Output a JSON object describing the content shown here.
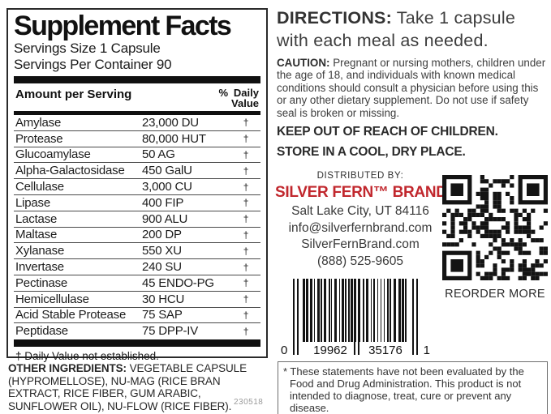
{
  "facts": {
    "title": "Supplement Facts",
    "serving_size": "Servings Size 1 Capsule",
    "servings_per_container": "Servings Per Container 90",
    "amount_header": "Amount per Serving",
    "daily_value_header": {
      "pct": "%",
      "line1": "Daily",
      "line2": "Value"
    },
    "rows": [
      {
        "name": "Amylase",
        "amount": "23,000 DU",
        "dv": "†"
      },
      {
        "name": "Protease",
        "amount": "80,000 HUT",
        "dv": "†"
      },
      {
        "name": "Glucoamylase",
        "amount": "50 AG",
        "dv": "†"
      },
      {
        "name": "Alpha-Galactosidase",
        "amount": "450 GalU",
        "dv": "†"
      },
      {
        "name": "Cellulase",
        "amount": "3,000 CU",
        "dv": "†"
      },
      {
        "name": "Lipase",
        "amount": "400 FIP",
        "dv": "†"
      },
      {
        "name": "Lactase",
        "amount": "900 ALU",
        "dv": "†"
      },
      {
        "name": "Maltase",
        "amount": "200 DP",
        "dv": "†"
      },
      {
        "name": "Xylanase",
        "amount": "550 XU",
        "dv": "†"
      },
      {
        "name": "Invertase",
        "amount": "240 SU",
        "dv": "†"
      },
      {
        "name": "Pectinase",
        "amount": "45 ENDO-PG",
        "dv": "†"
      },
      {
        "name": "Hemicellulase",
        "amount": "30 HCU",
        "dv": "†"
      },
      {
        "name": "Acid Stable Protease",
        "amount": "75 SAP",
        "dv": "†"
      },
      {
        "name": "Peptidase",
        "amount": "75 DPP-IV",
        "dv": "†"
      }
    ],
    "footnote": "† Daily Value not established."
  },
  "other_ingredients": {
    "label": "OTHER INGREDIENTS:",
    "text": "VEGETABLE CAPSULE (HYPROMELLOSE), NU-MAG (RICE BRAN EXTRACT, RICE FIBER, GUM ARABIC, SUNFLOWER OIL), NU-FLOW (RICE FIBER)."
  },
  "lot_number": "230518",
  "directions": {
    "label": "DIRECTIONS:",
    "text": "Take 1 capsule with each meal as needed."
  },
  "caution": {
    "label": "CAUTION:",
    "text": "Pregnant or nursing mothers, children under the age of 18, and individuals with known medical conditions should consult a physician before using this or any other dietary supplement. Do not use if safety seal is broken or missing."
  },
  "warnings": {
    "keep_out": "KEEP OUT OF REACH OF CHILDREN.",
    "store": "STORE IN A COOL, DRY PLACE."
  },
  "distributor": {
    "heading": "DISTRIBUTED BY:",
    "brand": "SILVER FERN™ BRAND",
    "address": "Salt Lake City, UT 84116",
    "email": "info@silverfernbrand.com",
    "website": "SilverFernBrand.com",
    "phone": "(888) 525-9605"
  },
  "qr": {
    "caption": "REORDER MORE"
  },
  "barcode": {
    "digits": [
      "0",
      "19962",
      "35176",
      "1"
    ]
  },
  "disclaimer": {
    "text": "* These statements have not been evaluated by the Food and Drug Administration. This product is not intended to diagnose, treat, cure or prevent any disease."
  },
  "colors": {
    "brand_red": "#c1272d",
    "text": "#1d1d1d",
    "muted": "#9a9a9a"
  }
}
